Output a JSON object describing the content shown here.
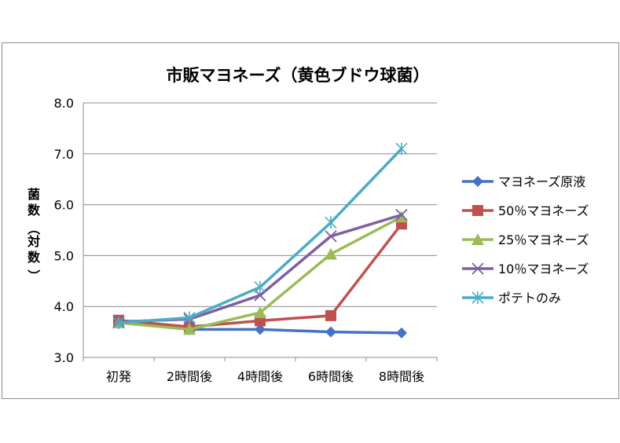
{
  "chart_data": {
    "type": "line",
    "title": "市販マヨネーズ（黄色ブドウ球菌）",
    "xlabel": "",
    "ylabel": "菌数（対数）",
    "categories": [
      "初発",
      "2時間後",
      "4時間後",
      "6時間後",
      "8時間後"
    ],
    "ylim": [
      3.0,
      8.0
    ],
    "yticks": [
      "3.0",
      "4.0",
      "5.0",
      "6.0",
      "7.0",
      "8.0"
    ],
    "grid": "horizontal",
    "legend_position": "right",
    "series": [
      {
        "name": "マヨネーズ原液",
        "values": [
          3.7,
          3.55,
          3.55,
          3.5,
          3.48
        ],
        "color": "#4572c4",
        "marker": "diamond"
      },
      {
        "name": "50％マヨネーズ",
        "values": [
          3.73,
          3.6,
          3.72,
          3.82,
          5.62
        ],
        "color": "#c0504d",
        "marker": "square"
      },
      {
        "name": "25％マヨネーズ",
        "values": [
          3.68,
          3.55,
          3.88,
          5.03,
          5.76
        ],
        "color": "#9bbb59",
        "marker": "triangle"
      },
      {
        "name": "10％マヨネーズ",
        "values": [
          3.7,
          3.75,
          4.22,
          5.38,
          5.8
        ],
        "color": "#7f5fa3",
        "marker": "x"
      },
      {
        "name": "ポテトのみ",
        "values": [
          3.68,
          3.78,
          4.38,
          5.65,
          7.1
        ],
        "color": "#4aacc5",
        "marker": "star"
      }
    ]
  }
}
